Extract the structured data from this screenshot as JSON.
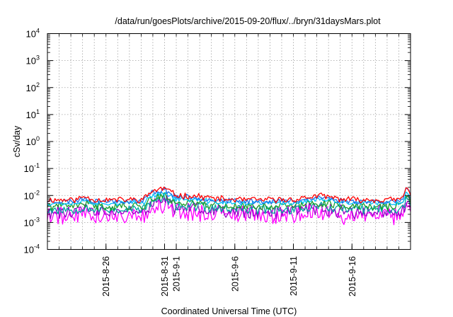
{
  "chart_data": {
    "type": "line",
    "title": "/data/run/goesPlots/archive/2015-09-20/flux/../bryn/31daysMars.plot",
    "xlabel": "Coordinated Universal Time (UTC)",
    "ylabel": "cSv/day",
    "yscale": "log",
    "ylim": [
      0.0001,
      10000
    ],
    "xlim_days": [
      0,
      31
    ],
    "grid": true,
    "y_ticks": [
      {
        "value": 0.0001,
        "base": "10",
        "exp": "-4"
      },
      {
        "value": 0.001,
        "base": "10",
        "exp": "-3"
      },
      {
        "value": 0.01,
        "base": "10",
        "exp": "-2"
      },
      {
        "value": 0.1,
        "base": "10",
        "exp": "-1"
      },
      {
        "value": 1,
        "base": "10",
        "exp": "0"
      },
      {
        "value": 10,
        "base": "10",
        "exp": "1"
      },
      {
        "value": 100,
        "base": "10",
        "exp": "2"
      },
      {
        "value": 1000,
        "base": "10",
        "exp": "3"
      },
      {
        "value": 10000,
        "base": "10",
        "exp": "4"
      }
    ],
    "x_ticks": [
      {
        "day": 5,
        "label": "2015-8-26"
      },
      {
        "day": 10,
        "label": "2015-8-31"
      },
      {
        "day": 11,
        "label": "2015-9-1"
      },
      {
        "day": 16,
        "label": "2015-9-6"
      },
      {
        "day": 21,
        "label": "2015-9-11"
      },
      {
        "day": 26,
        "label": "2015-9-16"
      }
    ],
    "x_grid_days": [
      1,
      2,
      3,
      4,
      5,
      6,
      7,
      8,
      9,
      10,
      11,
      12,
      13,
      14,
      15,
      16,
      17,
      18,
      19,
      20,
      21,
      22,
      23,
      24,
      25,
      26,
      27,
      28,
      29,
      30
    ],
    "series": [
      {
        "name": "red",
        "color": "#ff0000",
        "baseline": 0.0069,
        "noise": 0.1,
        "event_boost": 0.28,
        "seed": 11
      },
      {
        "name": "blue",
        "color": "#1f6fe6",
        "baseline": 0.0061,
        "noise": 0.09,
        "event_boost": 0.28,
        "seed": 23
      },
      {
        "name": "cyan",
        "color": "#00c2ff",
        "baseline": 0.0052,
        "noise": 0.08,
        "event_boost": 0.25,
        "seed": 37
      },
      {
        "name": "green",
        "color": "#1a9c2a",
        "baseline": 0.004,
        "noise": 0.14,
        "event_boost": 0.25,
        "seed": 41
      },
      {
        "name": "teal",
        "color": "#00a8a0",
        "baseline": 0.003,
        "noise": 0.16,
        "event_boost": 0.25,
        "seed": 53
      },
      {
        "name": "purple",
        "color": "#9a00c8",
        "baseline": 0.0024,
        "noise": 0.22,
        "event_boost": 0.25,
        "seed": 61
      },
      {
        "name": "magenta",
        "color": "#ff00ff",
        "baseline": 0.0018,
        "noise": 0.3,
        "event_boost": 0.25,
        "seed": 79
      }
    ]
  }
}
